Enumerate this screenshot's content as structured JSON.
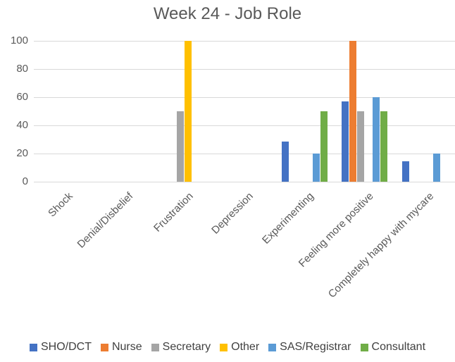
{
  "chart_data": {
    "type": "bar",
    "title": "Week 24 - Job Role",
    "categories": [
      "Shock",
      "Denial/Disbelief",
      "Frustration",
      "Depression",
      "Experimenting",
      "Feeling more positive",
      "Completely happy with mycare"
    ],
    "series": [
      {
        "name": "SHO/DCT",
        "color": "#4472C4",
        "values": [
          0,
          0,
          0,
          0,
          28.6,
          57.1,
          14.3
        ]
      },
      {
        "name": "Nurse",
        "color": "#ED7D31",
        "values": [
          0,
          0,
          0,
          0,
          0,
          100,
          0
        ]
      },
      {
        "name": "Secretary",
        "color": "#A5A5A5",
        "values": [
          0,
          0,
          50,
          0,
          0,
          50,
          0
        ]
      },
      {
        "name": "Other",
        "color": "#FFC000",
        "values": [
          0,
          0,
          100,
          0,
          0,
          0,
          0
        ]
      },
      {
        "name": "SAS/Registrar",
        "color": "#5B9BD5",
        "values": [
          0,
          0,
          0,
          0,
          20,
          60,
          20
        ]
      },
      {
        "name": "Consultant",
        "color": "#70AD47",
        "values": [
          0,
          0,
          0,
          0,
          50,
          50,
          0
        ]
      }
    ],
    "ylim": [
      0,
      100
    ],
    "yticks": [
      0,
      20,
      40,
      60,
      80,
      100
    ],
    "grid": true,
    "legend_position": "bottom",
    "gridline_color": "#D9D9D9",
    "title_color": "#595959",
    "axis_label_color": "#595959",
    "legend_text_color": "#404040",
    "background_color": "#FFFFFF"
  }
}
